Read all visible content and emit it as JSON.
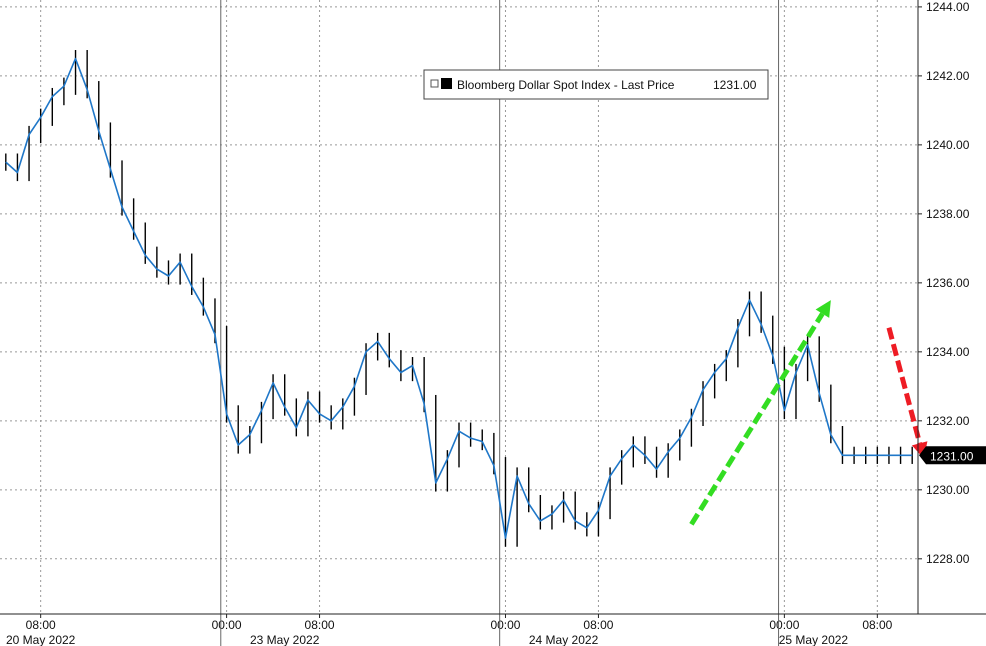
{
  "chart_data": {
    "type": "line",
    "series": [
      {
        "name": "Bloomberg Dollar Spot Index - Last Price",
        "x": [
          "05-20 05:00",
          "05-20 06:00",
          "05-20 07:00",
          "05-20 08:00",
          "05-20 09:00",
          "05-20 10:00",
          "05-20 11:00",
          "05-20 12:00",
          "05-20 13:00",
          "05-20 14:00",
          "05-20 15:00",
          "05-20 16:00",
          "05-20 17:00",
          "05-20 18:00",
          "05-20 19:00",
          "05-20 20:00",
          "05-20 21:00",
          "05-20 22:00",
          "05-20 23:00",
          "05-23 00:00",
          "05-23 01:00",
          "05-23 02:00",
          "05-23 03:00",
          "05-23 04:00",
          "05-23 05:00",
          "05-23 06:00",
          "05-23 07:00",
          "05-23 08:00",
          "05-23 09:00",
          "05-23 10:00",
          "05-23 11:00",
          "05-23 12:00",
          "05-23 13:00",
          "05-23 14:00",
          "05-23 15:00",
          "05-23 16:00",
          "05-23 17:00",
          "05-23 18:00",
          "05-23 19:00",
          "05-23 20:00",
          "05-23 21:00",
          "05-23 22:00",
          "05-23 23:00",
          "05-24 00:00",
          "05-24 01:00",
          "05-24 02:00",
          "05-24 03:00",
          "05-24 04:00",
          "05-24 05:00",
          "05-24 06:00",
          "05-24 07:00",
          "05-24 08:00",
          "05-24 09:00",
          "05-24 10:00",
          "05-24 11:00",
          "05-24 12:00",
          "05-24 13:00",
          "05-24 14:00",
          "05-24 15:00",
          "05-24 16:00",
          "05-24 17:00",
          "05-24 18:00",
          "05-24 19:00",
          "05-24 20:00",
          "05-24 21:00",
          "05-24 22:00",
          "05-24 23:00",
          "05-25 00:00",
          "05-25 01:00",
          "05-25 02:00",
          "05-25 03:00",
          "05-25 04:00",
          "05-25 05:00",
          "05-25 06:00",
          "05-25 07:00",
          "05-25 08:00",
          "05-25 09:00",
          "05-25 10:00",
          "05-25 11:00"
        ],
        "values": [
          1239.5,
          1239.2,
          1240.3,
          1240.8,
          1241.4,
          1241.7,
          1242.5,
          1241.6,
          1240.4,
          1239.3,
          1238.2,
          1237.5,
          1236.8,
          1236.4,
          1236.2,
          1236.6,
          1235.9,
          1235.3,
          1234.5,
          1232.2,
          1231.3,
          1231.6,
          1232.3,
          1233.1,
          1232.4,
          1231.8,
          1232.6,
          1232.2,
          1232.0,
          1232.4,
          1233.0,
          1234.0,
          1234.3,
          1233.8,
          1233.4,
          1233.6,
          1232.5,
          1230.2,
          1230.9,
          1231.7,
          1231.5,
          1231.4,
          1230.7,
          1228.6,
          1230.4,
          1229.6,
          1229.1,
          1229.3,
          1229.7,
          1229.1,
          1228.9,
          1229.4,
          1230.4,
          1230.9,
          1231.3,
          1231.0,
          1230.6,
          1231.1,
          1231.5,
          1232.1,
          1232.9,
          1233.4,
          1233.8,
          1234.7,
          1235.5,
          1234.8,
          1233.9,
          1232.3,
          1233.4,
          1234.2,
          1232.8,
          1231.6,
          1231.0,
          1231.0,
          1231.0,
          1231.0,
          1231.0,
          1231.0,
          1231.0
        ]
      }
    ],
    "last_price": "1231.00",
    "legend_label": "Bloomberg Dollar Spot Index - Last Price",
    "ylim": [
      1226.4,
      1244.2
    ],
    "yticks": [
      1228,
      1230,
      1232,
      1234,
      1236,
      1238,
      1240,
      1242,
      1244
    ],
    "ytick_labels": [
      "1228.00",
      "1230.00",
      "1232.00",
      "1234.00",
      "1236.00",
      "1238.00",
      "1240.00",
      "1242.00",
      "1244.00"
    ],
    "xticks": [
      {
        "label": "08:00",
        "at": "05-20 08:00"
      },
      {
        "label": "00:00",
        "at": "05-23 00:00"
      },
      {
        "label": "08:00",
        "at": "05-23 08:00"
      },
      {
        "label": "00:00",
        "at": "05-24 00:00"
      },
      {
        "label": "08:00",
        "at": "05-24 08:00"
      },
      {
        "label": "00:00",
        "at": "05-25 00:00"
      },
      {
        "label": "08:00",
        "at": "05-25 08:00"
      }
    ],
    "dates": [
      {
        "label": "20 May 2022",
        "at": "05-20 08:00"
      },
      {
        "label": "23 May 2022",
        "at": "05-23 05:00"
      },
      {
        "label": "24 May 2022",
        "at": "05-24 05:00"
      },
      {
        "label": "25 May 2022",
        "at": "05-25 02:30"
      }
    ],
    "day_breaks": [
      "05-20 23:30",
      "05-23 23:30",
      "05-24 23:30"
    ],
    "legend_placement": "top-center",
    "grid": true,
    "annotations": [
      {
        "type": "arrow",
        "color": "#33dd22",
        "from": {
          "x": "05-24 16:00",
          "y": 1229.0
        },
        "to": {
          "x": "05-25 04:00",
          "y": 1235.5
        }
      },
      {
        "type": "arrow",
        "color": "#ee1c24",
        "from": {
          "x": "05-25 09:00",
          "y": 1234.7
        },
        "to": {
          "x": "05-25 12:00",
          "y": 1230.9
        }
      }
    ],
    "colors": {
      "line": "#1f77c8",
      "bar_edge": "#000000",
      "grid": "#999999",
      "price_tag_bg": "#000000",
      "price_tag_text": "#ffffff"
    }
  }
}
